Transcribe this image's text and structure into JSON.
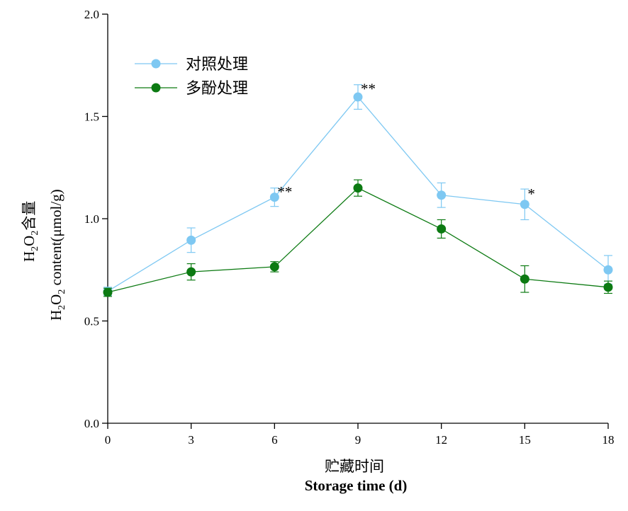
{
  "chart_data": {
    "type": "line",
    "x": [
      0,
      3,
      6,
      9,
      12,
      15,
      18
    ],
    "xlim": [
      0,
      18
    ],
    "xticks": [
      "0",
      "3",
      "6",
      "9",
      "12",
      "15",
      "18"
    ],
    "ylim": [
      0.0,
      2.0
    ],
    "yticks": [
      "0.0",
      "0.5",
      "1.0",
      "1.5",
      "2.0"
    ],
    "xlabel_cn": "贮藏时间",
    "xlabel_en": "Storage time (d)",
    "ylabel_cn": {
      "prefix": "H",
      "sub1": "2",
      "mid": "O",
      "sub2": "2",
      "suffix": "含量"
    },
    "ylabel_en": {
      "prefix": "H",
      "sub1": "2",
      "mid": "O",
      "sub2": "2",
      "suffix": " content(μmol/g)"
    },
    "grid": false,
    "legend_position": "top-left",
    "series": [
      {
        "name": "对照处理",
        "color": "#7ec8f2",
        "values": [
          0.645,
          0.895,
          1.105,
          1.595,
          1.115,
          1.07,
          0.75
        ],
        "errors": [
          0.02,
          0.06,
          0.045,
          0.06,
          0.06,
          0.075,
          0.07
        ]
      },
      {
        "name": "多酚处理",
        "color": "#0c7a12",
        "values": [
          0.64,
          0.74,
          0.765,
          1.15,
          0.95,
          0.705,
          0.665
        ],
        "errors": [
          0.02,
          0.04,
          0.025,
          0.04,
          0.045,
          0.065,
          0.03
        ]
      }
    ],
    "annotations": [
      {
        "x": 6,
        "y": 1.155,
        "text": "**"
      },
      {
        "x": 9,
        "y": 1.66,
        "text": "**"
      },
      {
        "x": 15,
        "y": 1.145,
        "text": "*"
      }
    ]
  }
}
